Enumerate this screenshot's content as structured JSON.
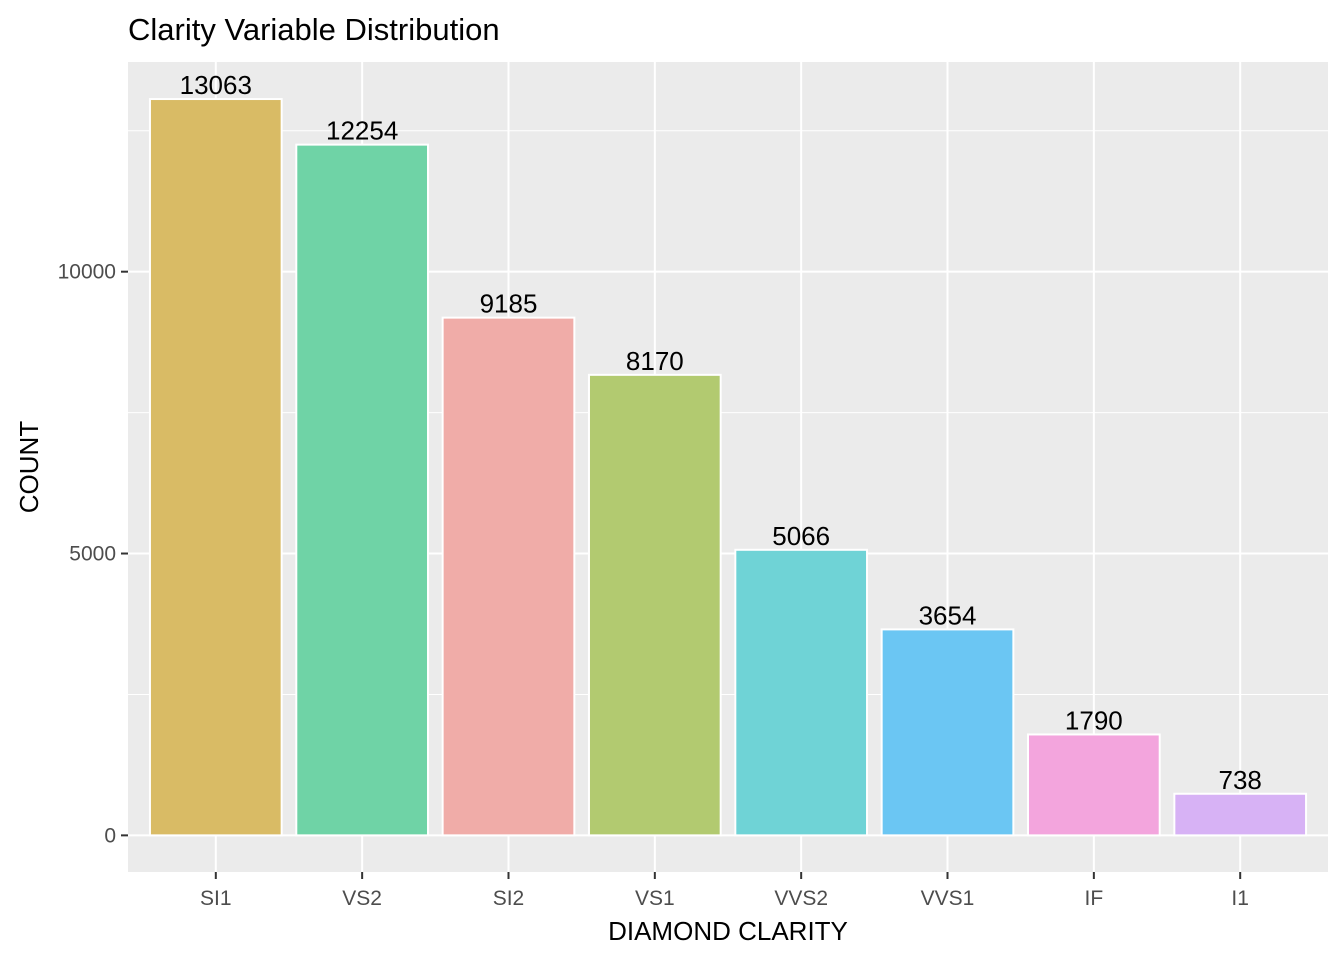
{
  "chart_data": {
    "type": "bar",
    "title": "Clarity Variable Distribution",
    "xlabel": "DIAMOND CLARITY",
    "ylabel": "COUNT",
    "categories": [
      "SI1",
      "VS2",
      "SI2",
      "VS1",
      "VVS2",
      "VVS1",
      "IF",
      "I1"
    ],
    "values": [
      13063,
      12254,
      9185,
      8170,
      5066,
      3654,
      1790,
      738
    ],
    "data_labels": [
      "13063",
      "12254",
      "9185",
      "8170",
      "5066",
      "3654",
      "1790",
      "738"
    ],
    "colors": [
      "#D9BB65",
      "#6FD3A6",
      "#F0ACA8",
      "#B2CA70",
      "#6FD3D6",
      "#6BC6F3",
      "#F3A5DD",
      "#D7B2F5"
    ],
    "ylim": [
      -650,
      13720
    ],
    "yticks": [
      0,
      5000,
      10000
    ],
    "ytick_labels": [
      "0",
      "5000",
      "10000"
    ],
    "y_minor_ticks": [
      2500,
      7500,
      12500
    ],
    "grid": true,
    "panel_background": "#EBEBEB",
    "legend": "none"
  }
}
